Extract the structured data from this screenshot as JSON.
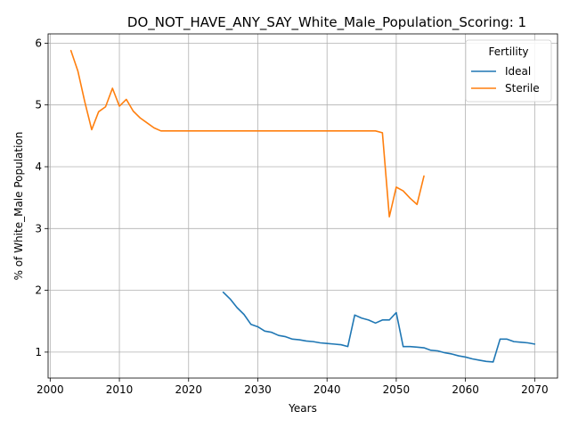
{
  "chart_data": {
    "type": "line",
    "title": "DO_NOT_HAVE_ANY_SAY_White_Male_Population_Scoring: 1",
    "xlabel": "Years",
    "ylabel": "% of White_Male Population",
    "xlim": [
      1999.7,
      2073.3
    ],
    "ylim": [
      0.58,
      6.15
    ],
    "xticks": [
      2000,
      2010,
      2020,
      2030,
      2040,
      2050,
      2060,
      2070
    ],
    "yticks": [
      1,
      2,
      3,
      4,
      5,
      6
    ],
    "grid": true,
    "legend": {
      "title": "Fertility",
      "position": "top-right"
    },
    "series": [
      {
        "name": "Ideal",
        "color": "#1f77b4",
        "x": [
          2025,
          2026,
          2027,
          2028,
          2029,
          2030,
          2031,
          2032,
          2033,
          2034,
          2035,
          2036,
          2037,
          2038,
          2039,
          2040,
          2041,
          2042,
          2043,
          2044,
          2045,
          2046,
          2047,
          2048,
          2049,
          2050,
          2051,
          2052,
          2053,
          2054,
          2055,
          2056,
          2057,
          2058,
          2059,
          2060,
          2061,
          2062,
          2063,
          2064,
          2065,
          2066,
          2067,
          2068,
          2069,
          2070
        ],
        "y": [
          1.97,
          1.86,
          1.72,
          1.61,
          1.45,
          1.41,
          1.34,
          1.32,
          1.27,
          1.25,
          1.21,
          1.2,
          1.18,
          1.17,
          1.15,
          1.14,
          1.13,
          1.12,
          1.09,
          1.6,
          1.55,
          1.52,
          1.47,
          1.52,
          1.52,
          1.64,
          1.09,
          1.09,
          1.08,
          1.07,
          1.03,
          1.02,
          0.99,
          0.97,
          0.94,
          0.92,
          0.89,
          0.87,
          0.85,
          0.84,
          1.21,
          1.21,
          1.17,
          1.16,
          1.15,
          1.13
        ]
      },
      {
        "name": "Sterile",
        "color": "#ff7f0e",
        "x": [
          2003,
          2004,
          2005,
          2006,
          2007,
          2008,
          2009,
          2010,
          2011,
          2012,
          2013,
          2014,
          2015,
          2016,
          2020,
          2030,
          2040,
          2045,
          2047,
          2048,
          2049,
          2050,
          2051,
          2052,
          2053,
          2054
        ],
        "y": [
          5.88,
          5.55,
          5.05,
          4.6,
          4.89,
          4.97,
          5.27,
          4.98,
          5.09,
          4.9,
          4.79,
          4.71,
          4.63,
          4.58,
          4.58,
          4.58,
          4.58,
          4.58,
          4.58,
          4.55,
          3.19,
          3.67,
          3.61,
          3.49,
          3.39,
          3.85
        ]
      }
    ]
  }
}
